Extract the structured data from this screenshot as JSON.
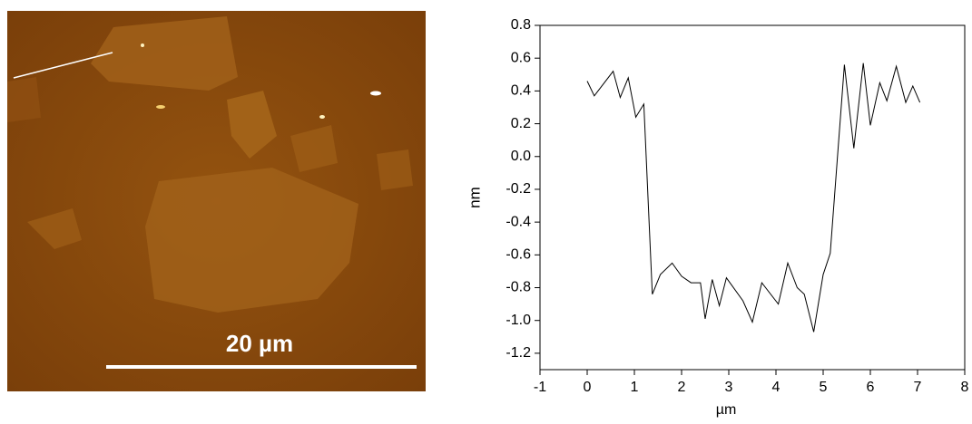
{
  "image": {
    "scale_bar_label": "20 µm"
  },
  "chart_data": {
    "type": "line",
    "x_label": "µm",
    "y_label": "nm",
    "x": [
      0,
      0.15,
      0.55,
      0.7,
      0.87,
      1.03,
      1.2,
      1.38,
      1.55,
      1.8,
      2.0,
      2.2,
      2.4,
      2.5,
      2.65,
      2.8,
      2.95,
      3.3,
      3.5,
      3.7,
      4.05,
      4.25,
      4.45,
      4.6,
      4.8,
      5.0,
      5.15,
      5.45,
      5.65,
      5.85,
      6.0,
      6.2,
      6.35,
      6.55,
      6.75,
      6.9,
      7.05
    ],
    "series": [
      {
        "color": "#000000",
        "values": [
          0.46,
          0.37,
          0.52,
          0.36,
          0.48,
          0.24,
          0.32,
          -0.84,
          -0.72,
          -0.65,
          -0.73,
          -0.77,
          -0.77,
          -0.99,
          -0.75,
          -0.91,
          -0.74,
          -0.88,
          -1.01,
          -0.77,
          -0.9,
          -0.65,
          -0.8,
          -0.84,
          -1.07,
          -0.72,
          -0.59,
          0.56,
          0.05,
          0.57,
          0.19,
          0.45,
          0.34,
          0.55,
          0.33,
          0.43,
          0.33
        ]
      }
    ],
    "xlim": [
      -1,
      8
    ],
    "xticks": [
      -1,
      0,
      1,
      2,
      3,
      4,
      5,
      6,
      7,
      8
    ],
    "ylim": [
      -1.3,
      0.8
    ],
    "yticks": [
      0.8,
      0.6,
      0.4,
      0.2,
      {
        "value": 0,
        "label": "0.0"
      },
      -0.2,
      -0.4,
      -0.6,
      -0.8,
      {
        "value": -1,
        "label": "-1.0"
      },
      -1.2
    ]
  }
}
